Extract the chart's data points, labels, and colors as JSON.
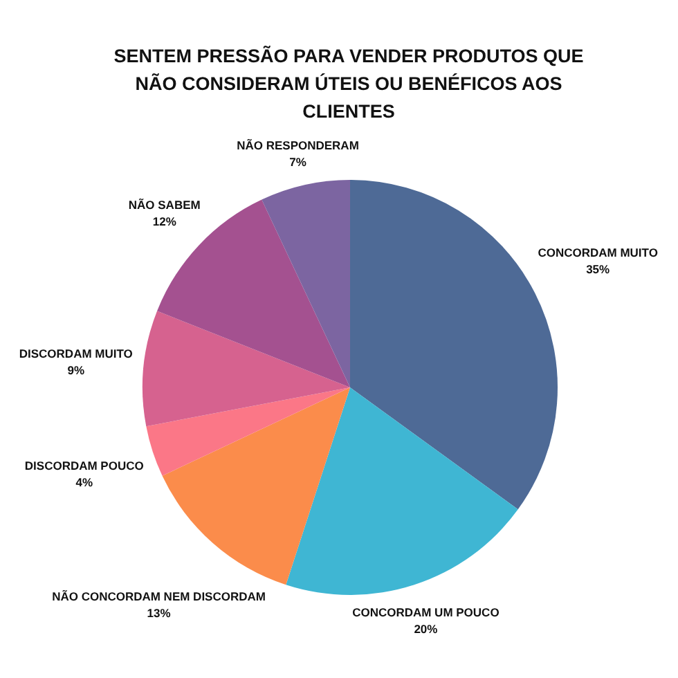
{
  "chart_data": {
    "type": "pie",
    "title": "SENTEM PRESSÃO PARA VENDER PRODUTOS QUE NÃO CONSIDERAM ÚTEIS OU BENÉFICOS AOS CLIENTES",
    "categories": [
      "CONCORDAM MUITO",
      "CONCORDAM UM POUCO",
      "NÃO CONCORDAM NEM DISCORDAM",
      "DISCORDAM POUCO",
      "DISCORDAM MUITO",
      "NÃO SABEM",
      "NÃO RESPONDERAM"
    ],
    "values": [
      35,
      20,
      13,
      4,
      9,
      12,
      7
    ],
    "value_labels": [
      "35%",
      "20%",
      "13%",
      "4%",
      "9%",
      "12%",
      "7%"
    ],
    "colors": [
      "#4e6a96",
      "#3fb6d3",
      "#fb8c4b",
      "#fb7787",
      "#d6628f",
      "#a45190",
      "#7c65a1"
    ]
  }
}
